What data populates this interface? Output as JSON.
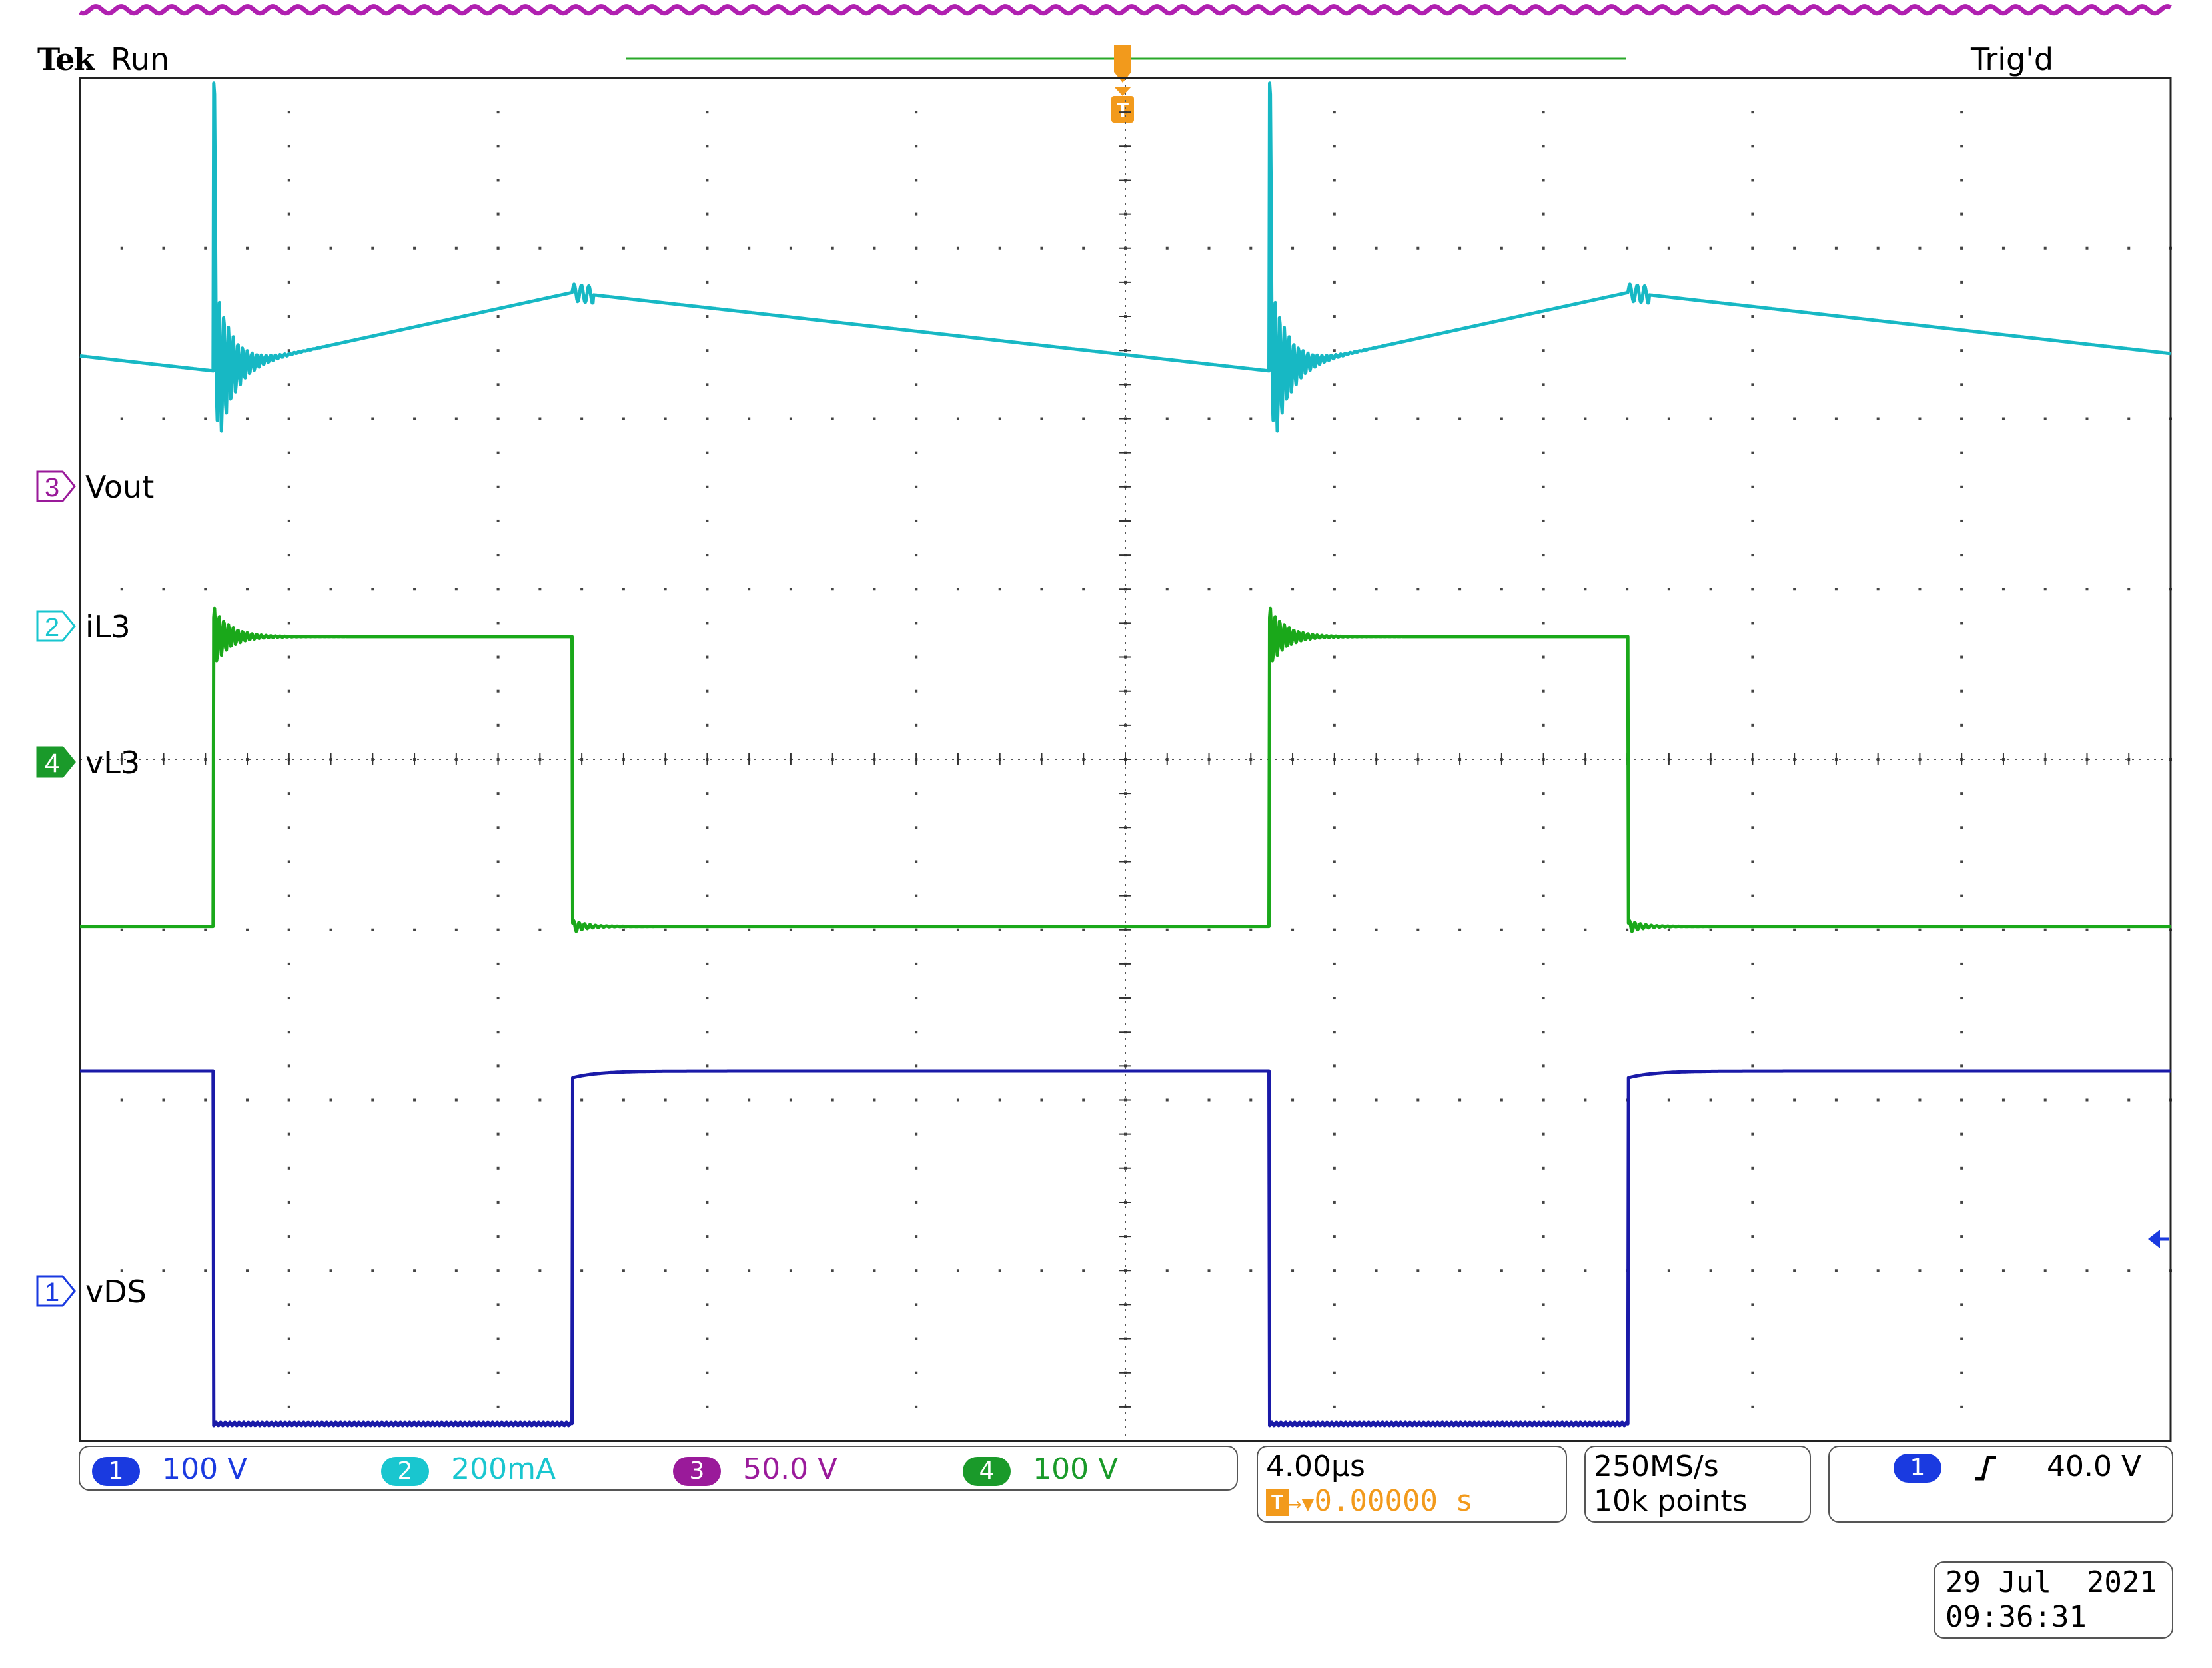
{
  "header": {
    "brand": "Tek",
    "run_state": "Run",
    "trigger_state": "Trig'd",
    "trigger_marker": "T"
  },
  "channels": [
    {
      "number": "1",
      "label": "vDS",
      "scale": "100 V",
      "color": "#1a1aa8",
      "pill_color": "#1a3ae0"
    },
    {
      "number": "2",
      "label": "iL3",
      "scale": "200mA",
      "color": "#17b8c4",
      "pill_color": "#19c6cf"
    },
    {
      "number": "3",
      "label": "Vout",
      "scale": "50.0 V",
      "color": "#b020b0",
      "pill_color": "#9a1a9a"
    },
    {
      "number": "4",
      "label": "vL3",
      "scale": "100 V",
      "color": "#1aa81a",
      "pill_color": "#1a9a2a"
    }
  ],
  "timebase": {
    "time_per_div": "4.00µs",
    "trigger_position": "0.00000 s",
    "sample_rate": "250MS/s",
    "record_length": "10k points"
  },
  "trigger": {
    "source": "1",
    "slope_icon": "rising-edge-icon",
    "level": "40.0 V"
  },
  "datetime": {
    "date": "29 Jul  2021",
    "time": "09:36:31"
  },
  "chart_data": {
    "type": "line",
    "grid": true,
    "x_unit": "µs",
    "xlim": [
      -20,
      20
    ],
    "x_divisions": 10,
    "y_divisions": 8,
    "switching_period_us": 20.2,
    "duty_cycle": 0.34,
    "series": [
      {
        "name": "Vout",
        "channel": "3",
        "ground_div": 2.0,
        "level_div": 4.4,
        "ripple_div": 0.02
      },
      {
        "name": "iL3",
        "channel": "2",
        "ground_div": 1.0,
        "valley_div": 2.28,
        "peak_div": 2.74,
        "spike_div": 1.5
      },
      {
        "name": "vL3",
        "channel": "4",
        "ground_div": 0.0,
        "high_div": 0.72,
        "low_div": -0.98
      },
      {
        "name": "vDS",
        "channel": "1",
        "ground_div": -3.9,
        "high_div": 2.07,
        "low_div": 0.0
      }
    ]
  }
}
